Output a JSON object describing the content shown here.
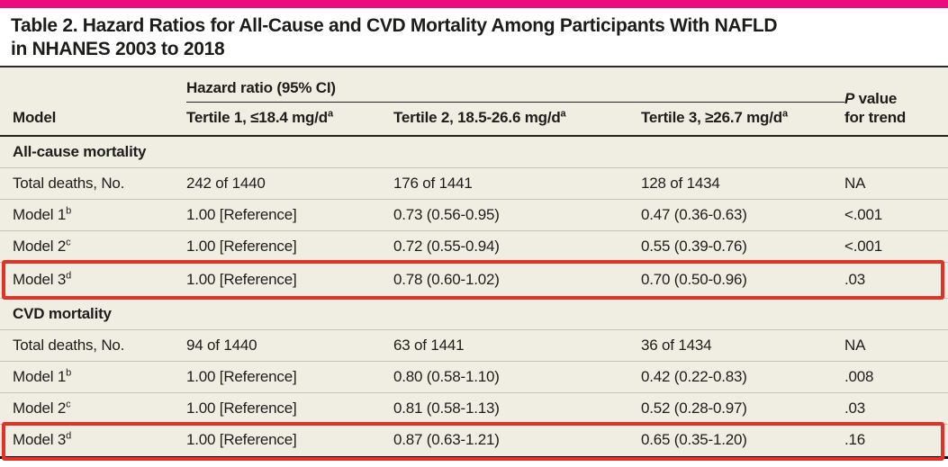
{
  "title": {
    "line1": "Table 2. Hazard Ratios for All-Cause and CVD Mortality Among Participants With NAFLD",
    "line2": "in NHANES 2003 to 2018"
  },
  "colors": {
    "accent_bar": "#ec0c7e",
    "table_background": "#f0eee3",
    "highlight_border": "#e53026",
    "text": "#1d1d1b",
    "row_separator": "#c6c4ba"
  },
  "header": {
    "group": "Hazard ratio (95% CI)",
    "model": "Model",
    "tertile1": "Tertile 1, ≤18.4 mg/d",
    "tertile2": "Tertile 2, 18.5-26.6 mg/d",
    "tertile3": "Tertile 3, ≥26.7 mg/d",
    "tertile_sup": "a",
    "p_italic": "P",
    "p_rest": " value",
    "p_line2": "for trend"
  },
  "sections": [
    {
      "heading": "All-cause mortality",
      "rows": [
        {
          "label": "Total deaths, No.",
          "sup": "",
          "hr1": "242 of 1440",
          "hr2": "176 of 1441",
          "hr3": "128 of 1434",
          "p": "NA"
        },
        {
          "label": "Model 1",
          "sup": "b",
          "hr1": "1.00 [Reference]",
          "hr2": "0.73 (0.56-0.95)",
          "hr3": "0.47 (0.36-0.63)",
          "p": "<.001"
        },
        {
          "label": "Model 2",
          "sup": "c",
          "hr1": "1.00 [Reference]",
          "hr2": "0.72 (0.55-0.94)",
          "hr3": "0.55 (0.39-0.76)",
          "p": "<.001"
        },
        {
          "label": "Model 3",
          "sup": "d",
          "hr1": "1.00 [Reference]",
          "hr2": "0.78 (0.60-1.02)",
          "hr3": "0.70 (0.50-0.96)",
          "p": ".03",
          "highlighted": true
        }
      ]
    },
    {
      "heading": "CVD mortality",
      "rows": [
        {
          "label": "Total deaths, No.",
          "sup": "",
          "hr1": "94 of 1440",
          "hr2": "63 of 1441",
          "hr3": "36 of 1434",
          "p": "NA"
        },
        {
          "label": "Model 1",
          "sup": "b",
          "hr1": "1.00 [Reference]",
          "hr2": "0.80 (0.58-1.10)",
          "hr3": "0.42 (0.22-0.83)",
          "p": ".008"
        },
        {
          "label": "Model 2",
          "sup": "c",
          "hr1": "1.00 [Reference]",
          "hr2": "0.81 (0.58-1.13)",
          "hr3": "0.52 (0.28-0.97)",
          "p": ".03"
        },
        {
          "label": "Model 3",
          "sup": "d",
          "hr1": "1.00 [Reference]",
          "hr2": "0.87 (0.63-1.21)",
          "hr3": "0.65 (0.35-1.20)",
          "p": ".16",
          "highlighted": true
        }
      ]
    }
  ]
}
